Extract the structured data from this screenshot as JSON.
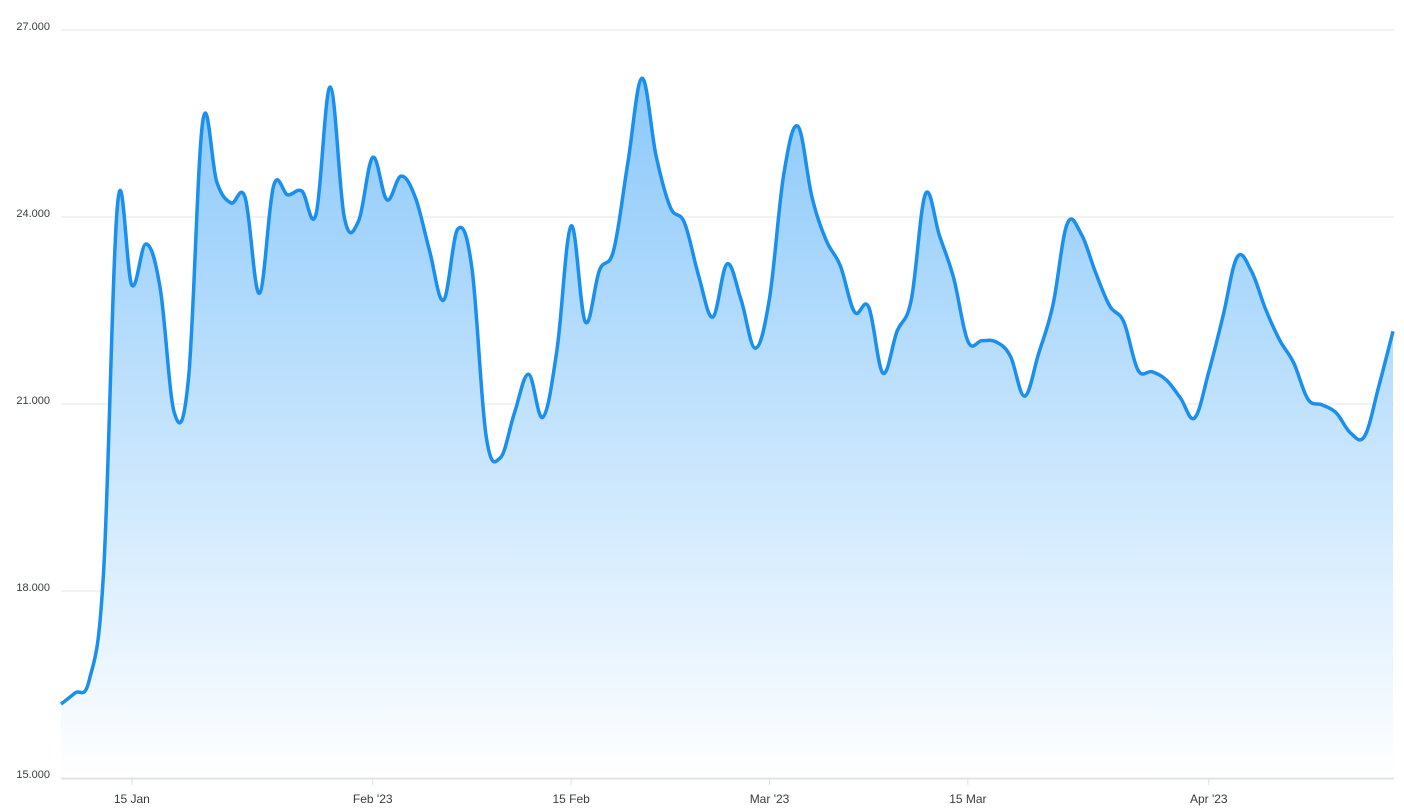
{
  "chart_data": {
    "type": "area",
    "x": [
      "2023-01-10",
      "2023-01-11",
      "2023-01-12",
      "2023-01-13",
      "2023-01-14",
      "2023-01-15",
      "2023-01-16",
      "2023-01-17",
      "2023-01-18",
      "2023-01-19",
      "2023-01-20",
      "2023-01-21",
      "2023-01-22",
      "2023-01-23",
      "2023-01-24",
      "2023-01-25",
      "2023-01-26",
      "2023-01-27",
      "2023-01-28",
      "2023-01-29",
      "2023-01-30",
      "2023-01-31",
      "2023-02-01",
      "2023-02-02",
      "2023-02-03",
      "2023-02-04",
      "2023-02-05",
      "2023-02-06",
      "2023-02-07",
      "2023-02-08",
      "2023-02-09",
      "2023-02-10",
      "2023-02-11",
      "2023-02-12",
      "2023-02-13",
      "2023-02-14",
      "2023-02-15",
      "2023-02-16",
      "2023-02-17",
      "2023-02-18",
      "2023-02-19",
      "2023-02-20",
      "2023-02-21",
      "2023-02-22",
      "2023-02-23",
      "2023-02-24",
      "2023-02-25",
      "2023-02-26",
      "2023-02-27",
      "2023-02-28",
      "2023-03-01",
      "2023-03-02",
      "2023-03-03",
      "2023-03-04",
      "2023-03-05",
      "2023-03-06",
      "2023-03-07",
      "2023-03-08",
      "2023-03-09",
      "2023-03-10",
      "2023-03-11",
      "2023-03-12",
      "2023-03-13",
      "2023-03-14",
      "2023-03-15",
      "2023-03-16",
      "2023-03-17",
      "2023-03-18",
      "2023-03-19",
      "2023-03-20",
      "2023-03-21",
      "2023-03-22",
      "2023-03-23",
      "2023-03-24",
      "2023-03-25",
      "2023-03-26",
      "2023-03-27",
      "2023-03-28",
      "2023-03-29",
      "2023-03-30",
      "2023-03-31",
      "2023-04-01",
      "2023-04-02",
      "2023-04-03",
      "2023-04-04",
      "2023-04-05",
      "2023-04-06",
      "2023-04-07",
      "2023-04-08",
      "2023-04-09",
      "2023-04-10",
      "2023-04-11",
      "2023-04-12",
      "2023-04-13",
      "2023-04-14"
    ],
    "values": [
      16170,
      16350,
      16560,
      18270,
      24210,
      22890,
      23550,
      22840,
      20840,
      21400,
      25510,
      24540,
      24210,
      24290,
      22760,
      24480,
      24340,
      24400,
      24030,
      26070,
      23970,
      23920,
      24940,
      24260,
      24640,
      24300,
      23450,
      22650,
      23790,
      23160,
      20470,
      20120,
      20840,
      21460,
      20770,
      21850,
      23840,
      22300,
      23130,
      23450,
      24850,
      26210,
      24960,
      24140,
      23890,
      23040,
      22380,
      23230,
      22650,
      21880,
      22680,
      24660,
      25440,
      24300,
      23610,
      23200,
      22460,
      22540,
      21480,
      22150,
      22650,
      24350,
      23680,
      23000,
      21990,
      22000,
      21980,
      21750,
      21110,
      21800,
      22570,
      23870,
      23710,
      23100,
      22560,
      22300,
      21530,
      21500,
      21370,
      21080,
      20760,
      21500,
      22390,
      23340,
      23120,
      22510,
      22010,
      21640,
      21060,
      20970,
      20840,
      20520,
      20470,
      21270,
      22150
    ],
    "color": "#1a8fee",
    "xlim": [
      "2023-01-10",
      "2023-04-14"
    ],
    "xticks": [
      {
        "value": "2023-01-15",
        "label": "15 Jan"
      },
      {
        "value": "2023-02-01",
        "label": "Feb '23"
      },
      {
        "value": "2023-02-15",
        "label": "15 Feb"
      },
      {
        "value": "2023-03-01",
        "label": "Mar '23"
      },
      {
        "value": "2023-03-15",
        "label": "15 Mar"
      },
      {
        "value": "2023-04-01",
        "label": "Apr '23"
      }
    ],
    "ylim": [
      15000,
      27000
    ],
    "yticks": [
      {
        "value": 15000,
        "label": "15.000"
      },
      {
        "value": 18000,
        "label": "18.000"
      },
      {
        "value": 21000,
        "label": "21.000"
      },
      {
        "value": 24000,
        "label": "24.000"
      },
      {
        "value": 27000,
        "label": "27.000"
      }
    ],
    "grid": true
  }
}
